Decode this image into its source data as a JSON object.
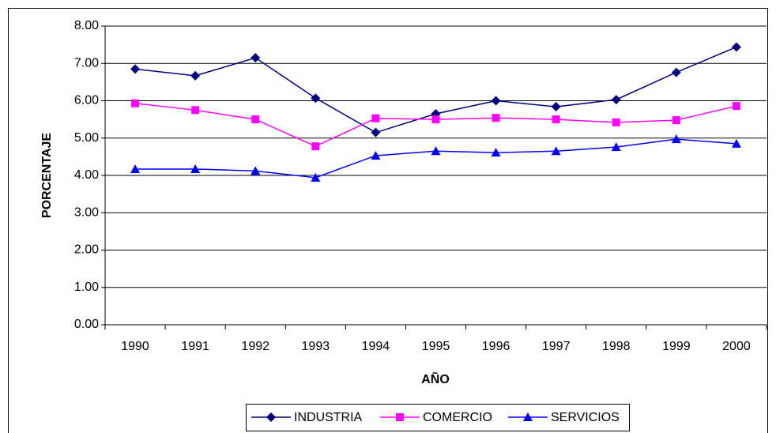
{
  "chart_data": {
    "type": "line",
    "y_label": "PORCENTAJE",
    "x_label": "AÑO",
    "categories": [
      "1990",
      "1991",
      "1992",
      "1993",
      "1994",
      "1995",
      "1996",
      "1997",
      "1998",
      "1999",
      "2000"
    ],
    "series": [
      {
        "name": "INDUSTRIA",
        "color": "#000080",
        "marker": "diamond",
        "values": [
          6.85,
          6.67,
          7.15,
          6.07,
          5.15,
          5.65,
          6.0,
          5.84,
          6.03,
          6.76,
          7.44
        ]
      },
      {
        "name": "COMERCIO",
        "color": "#ff00ff",
        "marker": "square",
        "values": [
          5.93,
          5.75,
          5.5,
          4.78,
          5.53,
          5.5,
          5.54,
          5.5,
          5.42,
          5.48,
          5.86
        ]
      },
      {
        "name": "SERVICIOS",
        "color": "#0000ff",
        "marker": "triangle",
        "values": [
          4.17,
          4.17,
          4.12,
          3.94,
          4.53,
          4.65,
          4.61,
          4.65,
          4.76,
          4.97,
          4.85
        ]
      }
    ],
    "ylim": [
      0,
      8
    ],
    "yticks": [
      {
        "value": 0,
        "label": "0.00"
      },
      {
        "value": 1,
        "label": "1.00"
      },
      {
        "value": 2,
        "label": "2.00"
      },
      {
        "value": 3,
        "label": "3.00"
      },
      {
        "value": 4,
        "label": "4.00"
      },
      {
        "value": 5,
        "label": "5.00"
      },
      {
        "value": 6,
        "label": "6.00"
      },
      {
        "value": 7,
        "label": "7.00"
      },
      {
        "value": 8,
        "label": "8.00"
      }
    ],
    "grid": true,
    "legend": "bottom"
  }
}
